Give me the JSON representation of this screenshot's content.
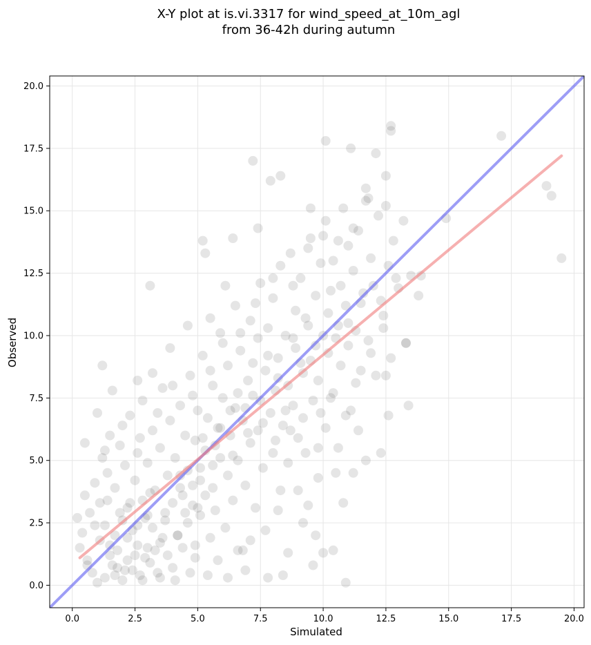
{
  "chart_data": {
    "type": "scatter",
    "title_lines": [
      "X-Y plot at is.vi.3317 for wind_speed_at_10m_agl",
      "from 36-42h during autumn"
    ],
    "xlabel": "Simulated",
    "ylabel": "Observed",
    "xlim": [
      -0.9,
      20.4
    ],
    "ylim": [
      -0.9,
      20.4
    ],
    "x_ticks": [
      0.0,
      2.5,
      5.0,
      7.5,
      10.0,
      12.5,
      15.0,
      17.5,
      20.0
    ],
    "y_ticks": [
      0.0,
      2.5,
      5.0,
      7.5,
      10.0,
      12.5,
      15.0,
      17.5,
      20.0
    ],
    "x_tick_labels": [
      "0.0",
      "2.5",
      "5.0",
      "7.5",
      "10.0",
      "12.5",
      "15.0",
      "17.5",
      "20.0"
    ],
    "y_tick_labels": [
      "0.0",
      "2.5",
      "5.0",
      "7.5",
      "10.0",
      "12.5",
      "15.0",
      "17.5",
      "20.0"
    ],
    "grid": true,
    "colors": {
      "points": "#444444",
      "identity_line": "#5c5cf0",
      "fit_line": "#f07c7c",
      "grid": "#e6e6e6"
    },
    "lines": [
      {
        "kind": "identity",
        "x": [
          -0.9,
          20.4
        ],
        "y": [
          -0.9,
          20.4
        ]
      },
      {
        "kind": "fit",
        "x": [
          0.3,
          19.5
        ],
        "y": [
          1.1,
          17.2
        ]
      }
    ],
    "series": [
      {
        "points": [
          [
            0.2,
            2.7
          ],
          [
            0.3,
            1.5
          ],
          [
            0.4,
            2.1
          ],
          [
            0.5,
            3.6
          ],
          [
            0.6,
            1.0
          ],
          [
            0.7,
            2.9
          ],
          [
            0.8,
            0.5
          ],
          [
            0.9,
            4.1
          ],
          [
            1.0,
            0.1
          ],
          [
            1.1,
            1.8
          ],
          [
            1.1,
            3.3
          ],
          [
            1.2,
            5.1
          ],
          [
            1.3,
            0.3
          ],
          [
            1.3,
            2.4
          ],
          [
            1.4,
            4.5
          ],
          [
            1.5,
            1.2
          ],
          [
            1.5,
            6.0
          ],
          [
            1.6,
            0.8
          ],
          [
            1.7,
            2.0
          ],
          [
            1.7,
            3.9
          ],
          [
            1.8,
            1.4
          ],
          [
            1.9,
            5.6
          ],
          [
            2.0,
            0.2
          ],
          [
            2.0,
            2.6
          ],
          [
            2.1,
            4.8
          ],
          [
            2.2,
            1.0
          ],
          [
            2.2,
            3.1
          ],
          [
            2.3,
            6.8
          ],
          [
            2.4,
            0.6
          ],
          [
            2.4,
            2.2
          ],
          [
            2.5,
            4.2
          ],
          [
            2.6,
            1.6
          ],
          [
            2.6,
            5.3
          ],
          [
            2.7,
            0.4
          ],
          [
            2.8,
            3.4
          ],
          [
            2.8,
            7.4
          ],
          [
            2.9,
            1.1
          ],
          [
            3.0,
            2.8
          ],
          [
            3.0,
            4.9
          ],
          [
            3.1,
            0.9
          ],
          [
            3.2,
            6.2
          ],
          [
            3.2,
            2.3
          ],
          [
            3.3,
            3.8
          ],
          [
            3.4,
            0.5
          ],
          [
            3.5,
            5.5
          ],
          [
            3.5,
            1.7
          ],
          [
            3.6,
            7.9
          ],
          [
            3.7,
            2.9
          ],
          [
            3.8,
            4.4
          ],
          [
            3.8,
            1.2
          ],
          [
            3.9,
            6.6
          ],
          [
            4.0,
            3.3
          ],
          [
            4.0,
            0.7
          ],
          [
            4.1,
            5.1
          ],
          [
            4.2,
            2.0
          ],
          [
            4.3,
            7.2
          ],
          [
            4.3,
            3.9
          ],
          [
            4.4,
            1.5
          ],
          [
            4.5,
            6.0
          ],
          [
            4.6,
            4.6
          ],
          [
            4.6,
            2.5
          ],
          [
            4.7,
            8.4
          ],
          [
            4.8,
            3.2
          ],
          [
            4.9,
            5.8
          ],
          [
            4.9,
            1.1
          ],
          [
            5.0,
            7.0
          ],
          [
            5.1,
            4.2
          ],
          [
            5.1,
            2.8
          ],
          [
            5.2,
            9.2
          ],
          [
            5.3,
            5.4
          ],
          [
            5.3,
            3.6
          ],
          [
            5.4,
            6.7
          ],
          [
            5.5,
            1.9
          ],
          [
            5.6,
            8.0
          ],
          [
            5.6,
            4.8
          ],
          [
            5.7,
            3.0
          ],
          [
            5.8,
            6.3
          ],
          [
            5.9,
            10.1
          ],
          [
            5.9,
            5.1
          ],
          [
            6.0,
            7.5
          ],
          [
            6.1,
            2.3
          ],
          [
            6.2,
            4.4
          ],
          [
            6.2,
            8.8
          ],
          [
            6.3,
            6.0
          ],
          [
            6.4,
            3.4
          ],
          [
            6.5,
            11.2
          ],
          [
            6.5,
            7.1
          ],
          [
            6.6,
            5.0
          ],
          [
            6.7,
            9.4
          ],
          [
            6.8,
            1.4
          ],
          [
            6.8,
            6.6
          ],
          [
            6.9,
            4.0
          ],
          [
            7.0,
            8.2
          ],
          [
            7.1,
            10.6
          ],
          [
            7.1,
            5.7
          ],
          [
            7.2,
            7.6
          ],
          [
            7.3,
            3.1
          ],
          [
            7.4,
            9.9
          ],
          [
            7.4,
            6.2
          ],
          [
            7.5,
            12.1
          ],
          [
            7.6,
            4.7
          ],
          [
            7.7,
            8.6
          ],
          [
            7.7,
            2.2
          ],
          [
            7.8,
            10.3
          ],
          [
            7.9,
            6.9
          ],
          [
            8.0,
            5.3
          ],
          [
            8.0,
            11.5
          ],
          [
            8.1,
            7.8
          ],
          [
            8.2,
            9.1
          ],
          [
            8.3,
            3.8
          ],
          [
            8.3,
            12.8
          ],
          [
            8.4,
            6.4
          ],
          [
            8.5,
            10.0
          ],
          [
            8.6,
            8.0
          ],
          [
            8.6,
            4.9
          ],
          [
            8.7,
            13.3
          ],
          [
            8.8,
            7.2
          ],
          [
            8.9,
            11.0
          ],
          [
            8.9,
            9.5
          ],
          [
            9.0,
            5.9
          ],
          [
            9.1,
            12.3
          ],
          [
            9.2,
            8.5
          ],
          [
            9.2,
            6.7
          ],
          [
            9.3,
            10.7
          ],
          [
            9.4,
            3.2
          ],
          [
            9.5,
            13.9
          ],
          [
            9.5,
            9.0
          ],
          [
            9.6,
            7.4
          ],
          [
            9.7,
            11.6
          ],
          [
            9.8,
            5.5
          ],
          [
            9.8,
            8.2
          ],
          [
            9.9,
            12.9
          ],
          [
            10.0,
            10.0
          ],
          [
            10.1,
            6.3
          ],
          [
            10.1,
            14.6
          ],
          [
            10.2,
            9.3
          ],
          [
            10.3,
            11.8
          ],
          [
            10.4,
            7.7
          ],
          [
            10.4,
            13.0
          ],
          [
            10.5,
            4.5
          ],
          [
            10.6,
            10.4
          ],
          [
            10.7,
            12.0
          ],
          [
            10.7,
            8.8
          ],
          [
            10.8,
            15.1
          ],
          [
            10.9,
            11.2
          ],
          [
            11.0,
            9.6
          ],
          [
            11.0,
            13.6
          ],
          [
            11.1,
            7.0
          ],
          [
            11.2,
            12.6
          ],
          [
            11.3,
            10.2
          ],
          [
            11.4,
            14.2
          ],
          [
            11.5,
            8.6
          ],
          [
            11.6,
            11.7
          ],
          [
            11.7,
            15.9
          ],
          [
            11.8,
            9.8
          ],
          [
            11.9,
            13.1
          ],
          [
            12.0,
            12.0
          ],
          [
            12.1,
            8.4
          ],
          [
            12.2,
            14.8
          ],
          [
            12.3,
            11.4
          ],
          [
            12.4,
            10.3
          ],
          [
            12.5,
            16.4
          ],
          [
            12.6,
            12.8
          ],
          [
            12.7,
            9.1
          ],
          [
            12.8,
            13.8
          ],
          [
            13.0,
            11.9
          ],
          [
            13.2,
            14.6
          ],
          [
            13.3,
            9.7
          ],
          [
            13.5,
            12.4
          ],
          [
            13.8,
            11.6
          ],
          [
            14.9,
            14.7
          ],
          [
            17.1,
            18.0
          ],
          [
            18.9,
            16.0
          ],
          [
            19.1,
            15.6
          ],
          [
            19.5,
            13.1
          ],
          [
            12.7,
            18.2
          ],
          [
            12.7,
            18.4
          ],
          [
            11.1,
            17.5
          ],
          [
            10.1,
            17.8
          ],
          [
            12.1,
            17.3
          ],
          [
            7.2,
            17.0
          ],
          [
            8.3,
            16.4
          ],
          [
            7.9,
            16.2
          ],
          [
            11.7,
            15.4
          ],
          [
            12.5,
            15.2
          ],
          [
            9.5,
            15.1
          ],
          [
            3.1,
            12.0
          ],
          [
            5.2,
            13.8
          ],
          [
            5.3,
            13.3
          ],
          [
            6.4,
            13.9
          ],
          [
            1.2,
            8.8
          ],
          [
            0.5,
            5.7
          ],
          [
            1.6,
            7.8
          ],
          [
            2.6,
            8.2
          ],
          [
            3.2,
            8.5
          ],
          [
            3.9,
            9.5
          ],
          [
            4.6,
            10.4
          ],
          [
            5.5,
            10.7
          ],
          [
            6.1,
            12.0
          ],
          [
            7.4,
            14.3
          ],
          [
            2.1,
            0.6
          ],
          [
            2.8,
            0.2
          ],
          [
            3.5,
            0.3
          ],
          [
            4.1,
            0.2
          ],
          [
            4.7,
            0.5
          ],
          [
            5.4,
            0.4
          ],
          [
            6.2,
            0.3
          ],
          [
            6.9,
            0.6
          ],
          [
            7.8,
            0.3
          ],
          [
            8.4,
            0.4
          ],
          [
            8.6,
            1.3
          ],
          [
            9.6,
            0.8
          ],
          [
            10.0,
            1.3
          ],
          [
            10.4,
            1.4
          ],
          [
            10.9,
            0.1
          ],
          [
            9.7,
            2.0
          ],
          [
            9.2,
            2.5
          ],
          [
            10.8,
            3.3
          ],
          [
            11.2,
            4.5
          ],
          [
            11.7,
            5.0
          ],
          [
            12.3,
            5.3
          ],
          [
            12.6,
            6.8
          ],
          [
            13.4,
            7.2
          ],
          [
            13.3,
            9.7
          ],
          [
            12.5,
            8.4
          ],
          [
            11.4,
            6.2
          ],
          [
            10.6,
            5.5
          ],
          [
            9.8,
            4.3
          ],
          [
            9.0,
            3.8
          ],
          [
            8.2,
            3.0
          ],
          [
            7.1,
            1.8
          ],
          [
            6.6,
            1.4
          ],
          [
            5.8,
            1.0
          ],
          [
            4.9,
            1.6
          ],
          [
            4.2,
            2.0
          ],
          [
            3.6,
            1.9
          ],
          [
            2.9,
            2.7
          ],
          [
            2.3,
            3.3
          ],
          [
            1.9,
            2.9
          ],
          [
            1.4,
            3.4
          ],
          [
            0.9,
            2.4
          ],
          [
            0.6,
            0.8
          ],
          [
            1.8,
            0.7
          ],
          [
            2.5,
            1.2
          ],
          [
            3.3,
            1.4
          ],
          [
            4.4,
            3.6
          ],
          [
            5.1,
            4.7
          ],
          [
            5.7,
            5.6
          ],
          [
            6.3,
            7.0
          ],
          [
            6.9,
            7.1
          ],
          [
            7.6,
            6.5
          ],
          [
            8.1,
            5.8
          ],
          [
            8.7,
            6.2
          ],
          [
            9.3,
            5.3
          ],
          [
            9.9,
            6.9
          ],
          [
            10.3,
            7.5
          ],
          [
            10.9,
            6.8
          ],
          [
            11.3,
            8.1
          ],
          [
            11.9,
            9.3
          ],
          [
            12.4,
            10.8
          ],
          [
            1.0,
            6.9
          ],
          [
            1.3,
            5.4
          ],
          [
            2.0,
            6.4
          ],
          [
            2.7,
            5.9
          ],
          [
            3.4,
            6.9
          ],
          [
            4.0,
            8.0
          ],
          [
            4.8,
            7.6
          ],
          [
            5.5,
            8.6
          ],
          [
            6.0,
            9.7
          ],
          [
            6.7,
            10.1
          ],
          [
            7.3,
            11.3
          ],
          [
            8.0,
            12.3
          ],
          [
            8.8,
            12.0
          ],
          [
            9.4,
            13.5
          ],
          [
            10.0,
            14.0
          ],
          [
            10.6,
            13.8
          ],
          [
            11.2,
            14.3
          ],
          [
            11.8,
            15.5
          ],
          [
            12.9,
            12.3
          ],
          [
            13.9,
            12.4
          ],
          [
            1.5,
            1.6
          ],
          [
            1.7,
            0.4
          ],
          [
            2.2,
            1.9
          ],
          [
            2.6,
            2.4
          ],
          [
            3.0,
            1.5
          ],
          [
            3.1,
            3.7
          ],
          [
            3.7,
            2.6
          ],
          [
            4.3,
            4.4
          ],
          [
            4.5,
            2.9
          ],
          [
            4.8,
            4.0
          ],
          [
            5.0,
            3.1
          ],
          [
            5.2,
            5.9
          ],
          [
            5.6,
            3.9
          ],
          [
            5.9,
            6.3
          ],
          [
            6.4,
            5.2
          ],
          [
            6.6,
            7.7
          ],
          [
            7.0,
            6.1
          ],
          [
            7.2,
            8.9
          ],
          [
            7.5,
            7.4
          ],
          [
            7.8,
            9.2
          ],
          [
            8.2,
            8.3
          ],
          [
            8.5,
            7.0
          ],
          [
            8.8,
            9.9
          ],
          [
            9.1,
            8.9
          ],
          [
            9.4,
            10.4
          ],
          [
            9.7,
            9.6
          ],
          [
            10.2,
            10.9
          ],
          [
            10.5,
            9.9
          ],
          [
            11.0,
            10.5
          ],
          [
            11.5,
            11.3
          ]
        ]
      }
    ]
  }
}
